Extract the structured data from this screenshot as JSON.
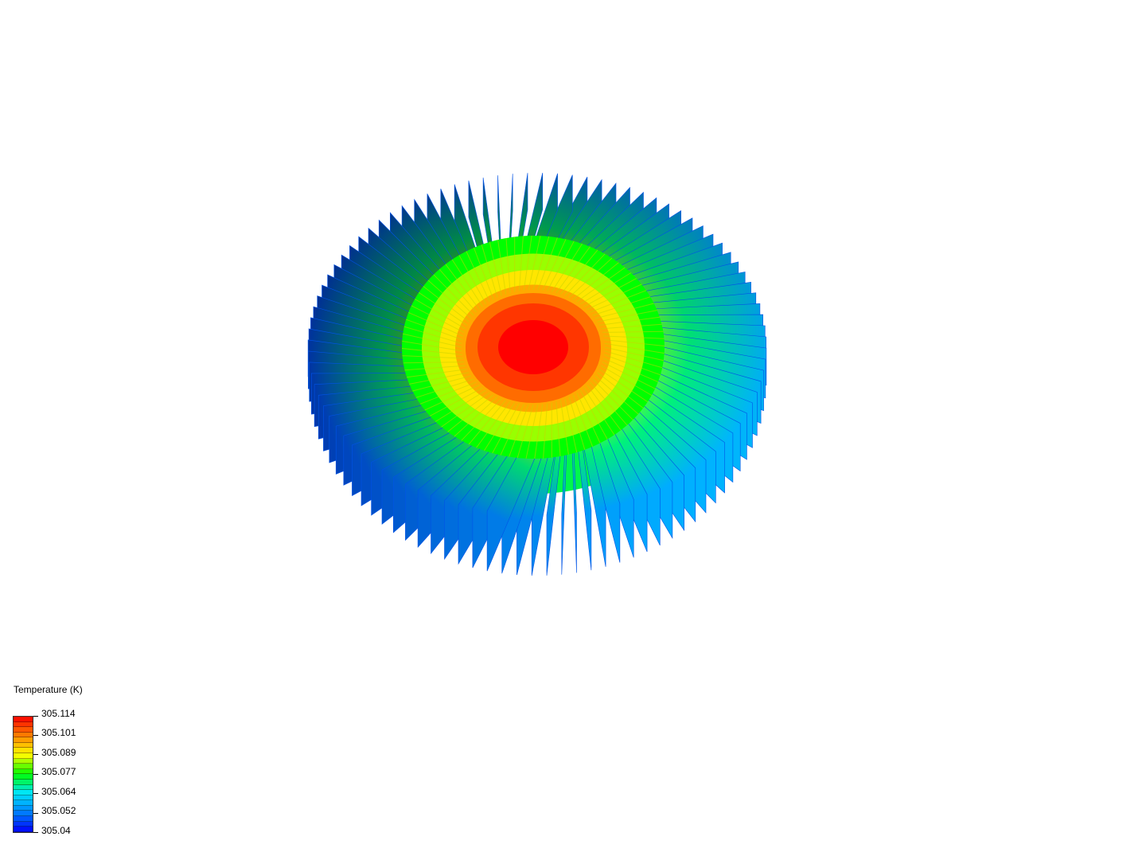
{
  "legend": {
    "title": "Temperature (K)",
    "labels": [
      "305.114",
      "305.101",
      "305.089",
      "305.077",
      "305.064",
      "305.052",
      "305.04"
    ],
    "max": 305.114,
    "min": 305.04
  },
  "colors": {
    "background": "#ffffff",
    "colormap": [
      "#0000ff",
      "#0080ff",
      "#00e5ff",
      "#00ff00",
      "#ffff00",
      "#ff8000",
      "#ff0000"
    ]
  },
  "model": {
    "type": "radial-pin-fin-heatsink",
    "fin_count": 96
  }
}
